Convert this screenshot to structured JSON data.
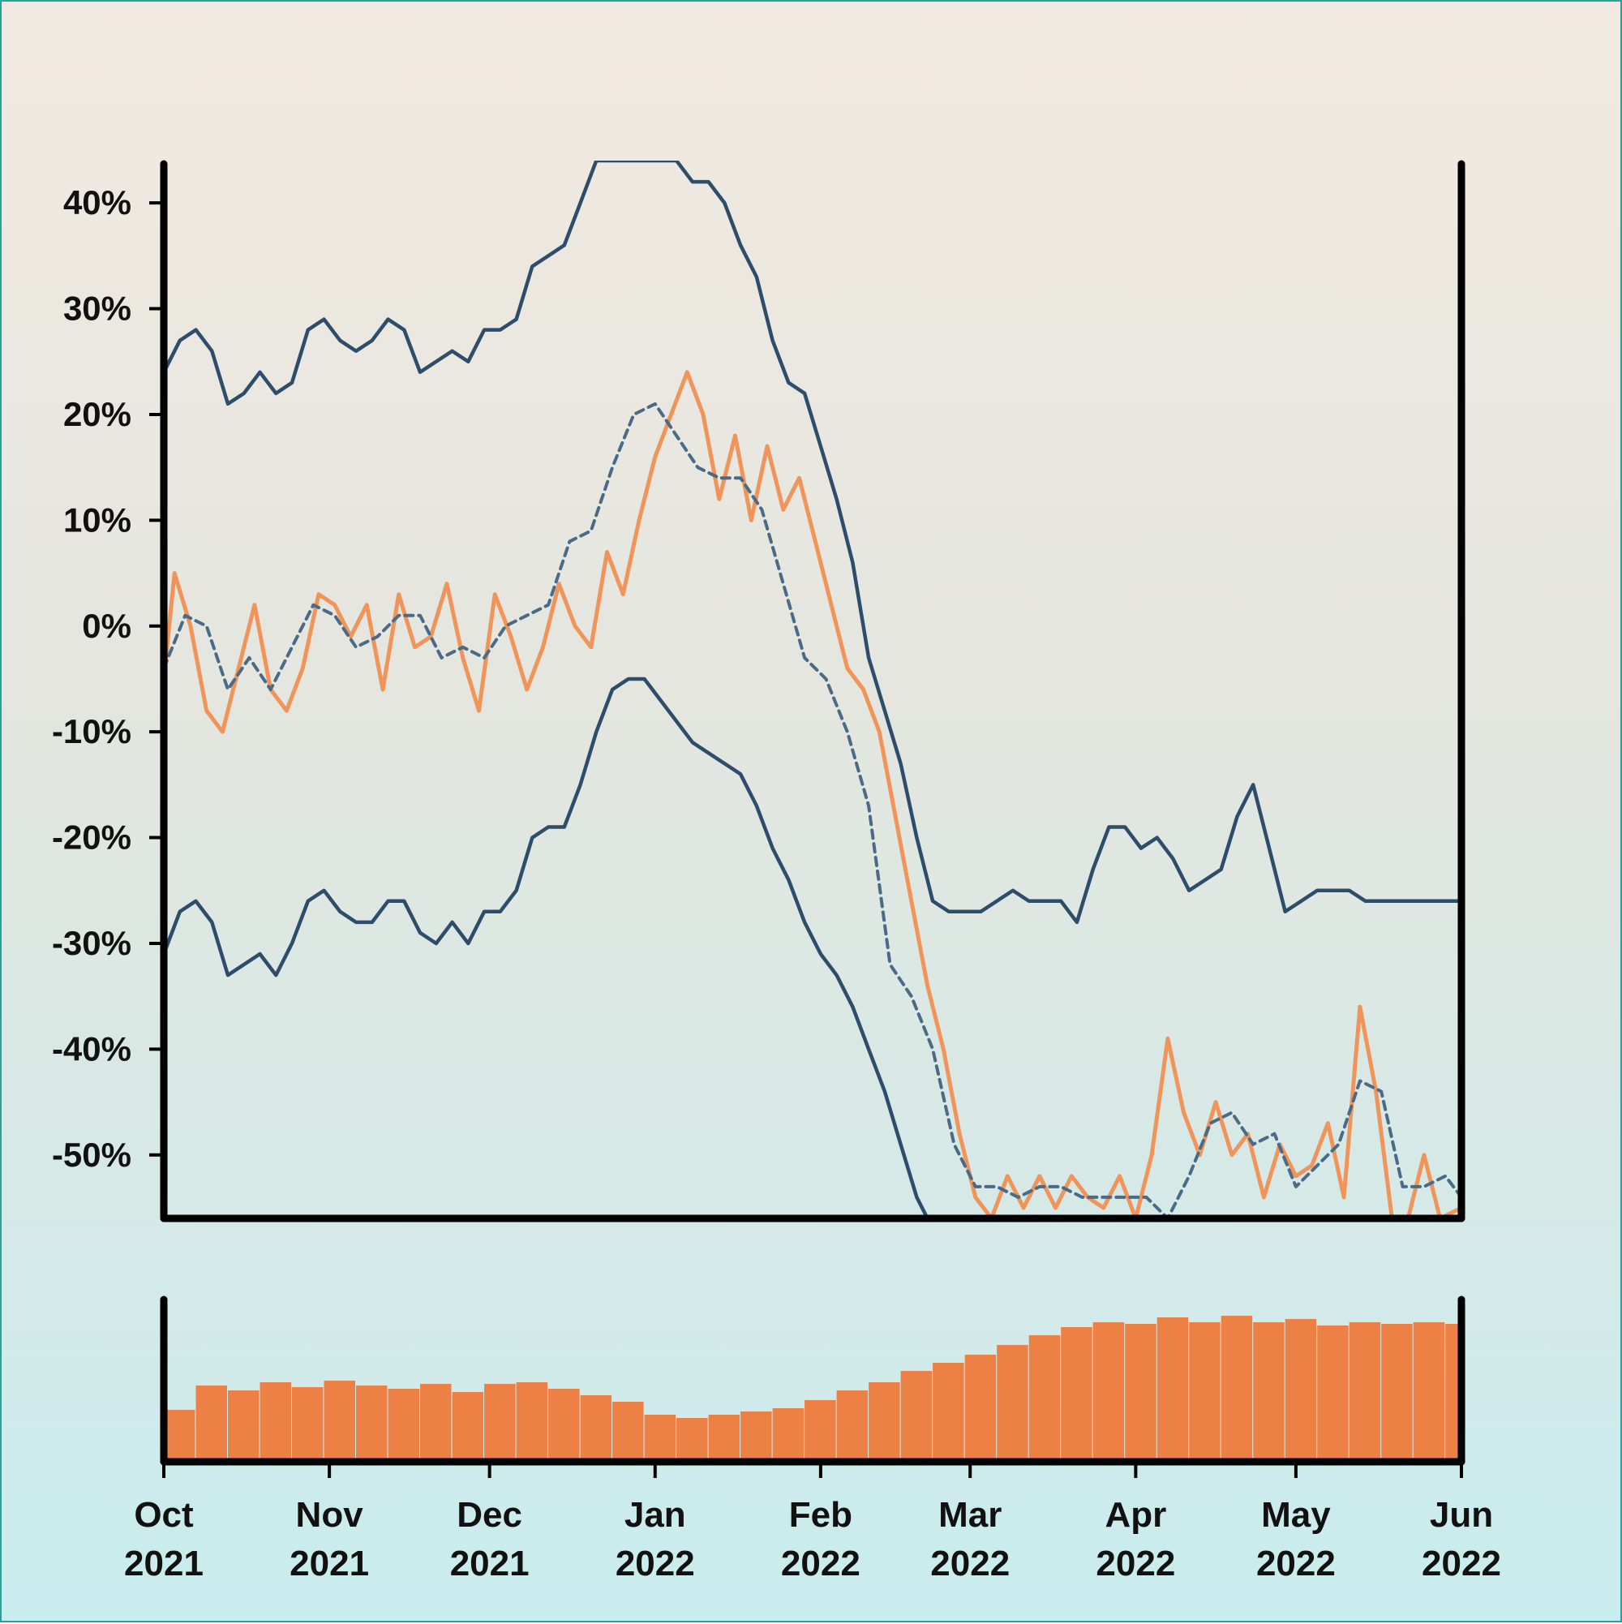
{
  "chart_data": {
    "type": "line",
    "title": "",
    "xlabel": "",
    "ylabel": "",
    "date_range": [
      "2021-10-01",
      "2022-06-01"
    ],
    "ylim": [
      -56,
      44
    ],
    "yticks": [
      40,
      30,
      20,
      10,
      0,
      -10,
      -20,
      -30,
      -40,
      -50
    ],
    "ytick_labels": [
      "40%",
      "30%",
      "20%",
      "10%",
      "0%",
      "-10%",
      "-20%",
      "-30%",
      "-40%",
      "-50%"
    ],
    "xticks": [
      "2021-10-01",
      "2021-11-01",
      "2021-12-01",
      "2022-01-01",
      "2022-02-01",
      "2022-03-01",
      "2022-04-01",
      "2022-05-01",
      "2022-06-01"
    ],
    "xtick_labels": [
      {
        "month": "Oct",
        "year": "2021"
      },
      {
        "month": "Nov",
        "year": "2021"
      },
      {
        "month": "Dec",
        "year": "2021"
      },
      {
        "month": "Jan",
        "year": "2022"
      },
      {
        "month": "Feb",
        "year": "2022"
      },
      {
        "month": "Mar",
        "year": "2022"
      },
      {
        "month": "Apr",
        "year": "2022"
      },
      {
        "month": "May",
        "year": "2022"
      },
      {
        "month": "Jun",
        "year": "2022"
      }
    ],
    "colors": {
      "price": "#f0945a",
      "band": "#2e4d6b",
      "average": "#4a6a86",
      "volume": "#ec8045"
    },
    "series": [
      {
        "role": "price",
        "style": "solid-orange",
        "x": [
          "2021-10-01",
          "2021-10-03",
          "2021-10-06",
          "2021-10-09",
          "2021-10-12",
          "2021-10-15",
          "2021-10-18",
          "2021-10-21",
          "2021-10-24",
          "2021-10-27",
          "2021-10-30",
          "2021-11-02",
          "2021-11-05",
          "2021-11-08",
          "2021-11-11",
          "2021-11-14",
          "2021-11-17",
          "2021-11-20",
          "2021-11-23",
          "2021-11-26",
          "2021-11-29",
          "2021-12-02",
          "2021-12-05",
          "2021-12-08",
          "2021-12-11",
          "2021-12-14",
          "2021-12-17",
          "2021-12-20",
          "2021-12-23",
          "2021-12-26",
          "2021-12-29",
          "2022-01-01",
          "2022-01-04",
          "2022-01-07",
          "2022-01-10",
          "2022-01-13",
          "2022-01-16",
          "2022-01-19",
          "2022-01-22",
          "2022-01-25",
          "2022-01-28",
          "2022-01-31",
          "2022-02-03",
          "2022-02-06",
          "2022-02-09",
          "2022-02-12",
          "2022-02-15",
          "2022-02-18",
          "2022-02-21",
          "2022-02-24",
          "2022-02-27",
          "2022-03-02",
          "2022-03-05",
          "2022-03-08",
          "2022-03-11",
          "2022-03-14",
          "2022-03-17",
          "2022-03-20",
          "2022-03-23",
          "2022-03-26",
          "2022-03-29",
          "2022-04-01",
          "2022-04-04",
          "2022-04-07",
          "2022-04-10",
          "2022-04-13",
          "2022-04-16",
          "2022-04-19",
          "2022-04-22",
          "2022-04-25",
          "2022-04-28",
          "2022-05-01",
          "2022-05-04",
          "2022-05-07",
          "2022-05-10",
          "2022-05-13",
          "2022-05-16",
          "2022-05-19",
          "2022-05-22",
          "2022-05-25",
          "2022-05-28",
          "2022-06-01"
        ],
        "y": [
          -5,
          5,
          0,
          -8,
          -10,
          -4,
          2,
          -6,
          -8,
          -4,
          3,
          2,
          -1,
          2,
          -6,
          3,
          -2,
          -1,
          4,
          -3,
          -8,
          3,
          -1,
          -6,
          -2,
          4,
          0,
          -2,
          7,
          3,
          10,
          16,
          20,
          24,
          20,
          12,
          18,
          10,
          17,
          11,
          14,
          8,
          2,
          -4,
          -6,
          -10,
          -18,
          -26,
          -34,
          -40,
          -48,
          -54,
          -56,
          -52,
          -55,
          -52,
          -55,
          -52,
          -54,
          -55,
          -52,
          -56,
          -50,
          -39,
          -46,
          -50,
          -45,
          -50,
          -48,
          -54,
          -49,
          -52,
          -51,
          -47,
          -54,
          -36,
          -44,
          -56,
          -56,
          -50,
          -56,
          -55
        ]
      },
      {
        "role": "moving-average",
        "style": "dashed-slate",
        "x": [
          "2021-10-01",
          "2021-10-05",
          "2021-10-09",
          "2021-10-13",
          "2021-10-17",
          "2021-10-21",
          "2021-10-25",
          "2021-10-29",
          "2021-11-02",
          "2021-11-06",
          "2021-11-10",
          "2021-11-14",
          "2021-11-18",
          "2021-11-22",
          "2021-11-26",
          "2021-11-30",
          "2021-12-04",
          "2021-12-08",
          "2021-12-12",
          "2021-12-16",
          "2021-12-20",
          "2021-12-24",
          "2021-12-28",
          "2022-01-01",
          "2022-01-05",
          "2022-01-09",
          "2022-01-13",
          "2022-01-17",
          "2022-01-21",
          "2022-01-25",
          "2022-01-29",
          "2022-02-02",
          "2022-02-06",
          "2022-02-10",
          "2022-02-14",
          "2022-02-18",
          "2022-02-22",
          "2022-02-26",
          "2022-03-02",
          "2022-03-06",
          "2022-03-10",
          "2022-03-14",
          "2022-03-18",
          "2022-03-22",
          "2022-03-26",
          "2022-03-30",
          "2022-04-03",
          "2022-04-07",
          "2022-04-11",
          "2022-04-15",
          "2022-04-19",
          "2022-04-23",
          "2022-04-27",
          "2022-05-01",
          "2022-05-05",
          "2022-05-09",
          "2022-05-13",
          "2022-05-17",
          "2022-05-21",
          "2022-05-25",
          "2022-05-29",
          "2022-06-01"
        ],
        "y": [
          -4,
          1,
          0,
          -6,
          -3,
          -6,
          -2,
          2,
          1,
          -2,
          -1,
          1,
          1,
          -3,
          -2,
          -3,
          0,
          1,
          2,
          8,
          9,
          15,
          20,
          21,
          18,
          15,
          14,
          14,
          11,
          4,
          -3,
          -5,
          -10,
          -17,
          -32,
          -35,
          -40,
          -49,
          -53,
          -53,
          -54,
          -53,
          -53,
          -54,
          -54,
          -54,
          -54,
          -56,
          -52,
          -47,
          -46,
          -49,
          -48,
          -53,
          -51,
          -49,
          -43,
          -44,
          -53,
          -53,
          -52,
          -54
        ]
      },
      {
        "role": "upper-band",
        "style": "solid-navy",
        "x": [
          "2021-10-01",
          "2021-10-04",
          "2021-10-07",
          "2021-10-10",
          "2021-10-13",
          "2021-10-16",
          "2021-10-19",
          "2021-10-22",
          "2021-10-25",
          "2021-10-28",
          "2021-10-31",
          "2021-11-03",
          "2021-11-06",
          "2021-11-09",
          "2021-11-12",
          "2021-11-15",
          "2021-11-18",
          "2021-11-21",
          "2021-11-24",
          "2021-11-27",
          "2021-11-30",
          "2021-12-03",
          "2021-12-06",
          "2021-12-09",
          "2021-12-12",
          "2021-12-15",
          "2021-12-18",
          "2021-12-21",
          "2021-12-24",
          "2021-12-27",
          "2021-12-30",
          "2022-01-02",
          "2022-01-05",
          "2022-01-08",
          "2022-01-11",
          "2022-01-14",
          "2022-01-17",
          "2022-01-20",
          "2022-01-23",
          "2022-01-26",
          "2022-01-29",
          "2022-02-01",
          "2022-02-04",
          "2022-02-07",
          "2022-02-10",
          "2022-02-13",
          "2022-02-16",
          "2022-02-19",
          "2022-02-22",
          "2022-02-25",
          "2022-02-28",
          "2022-03-03",
          "2022-03-06",
          "2022-03-09",
          "2022-03-12",
          "2022-03-15",
          "2022-03-18",
          "2022-03-21",
          "2022-03-24",
          "2022-03-27",
          "2022-03-30",
          "2022-04-02",
          "2022-04-05",
          "2022-04-08",
          "2022-04-11",
          "2022-04-14",
          "2022-04-17",
          "2022-04-20",
          "2022-04-23",
          "2022-04-26",
          "2022-04-29",
          "2022-05-02",
          "2022-05-05",
          "2022-05-08",
          "2022-05-11",
          "2022-05-14",
          "2022-05-17",
          "2022-05-20",
          "2022-05-23",
          "2022-05-26",
          "2022-05-29",
          "2022-06-01"
        ],
        "y": [
          24,
          27,
          28,
          26,
          21,
          22,
          24,
          22,
          23,
          28,
          29,
          27,
          26,
          27,
          29,
          28,
          24,
          25,
          26,
          25,
          28,
          28,
          29,
          34,
          35,
          36,
          40,
          44,
          44,
          44,
          44,
          44,
          44,
          42,
          42,
          40,
          36,
          33,
          27,
          23,
          22,
          17,
          12,
          6,
          -3,
          -8,
          -13,
          -20,
          -26,
          -27,
          -27,
          -27,
          -26,
          -25,
          -26,
          -26,
          -26,
          -28,
          -23,
          -19,
          -19,
          -21,
          -20,
          -22,
          -25,
          -24,
          -23,
          -18,
          -15,
          -21,
          -27,
          -26,
          -25,
          -25,
          -25,
          -26,
          -26,
          -26,
          -26,
          -26,
          -26,
          -26
        ]
      },
      {
        "role": "lower-band",
        "style": "solid-navy",
        "x": [
          "2021-10-01",
          "2021-10-04",
          "2021-10-07",
          "2021-10-10",
          "2021-10-13",
          "2021-10-16",
          "2021-10-19",
          "2021-10-22",
          "2021-10-25",
          "2021-10-28",
          "2021-10-31",
          "2021-11-03",
          "2021-11-06",
          "2021-11-09",
          "2021-11-12",
          "2021-11-15",
          "2021-11-18",
          "2021-11-21",
          "2021-11-24",
          "2021-11-27",
          "2021-11-30",
          "2021-12-03",
          "2021-12-06",
          "2021-12-09",
          "2021-12-12",
          "2021-12-15",
          "2021-12-18",
          "2021-12-21",
          "2021-12-24",
          "2021-12-27",
          "2021-12-30",
          "2022-01-02",
          "2022-01-05",
          "2022-01-08",
          "2022-01-11",
          "2022-01-14",
          "2022-01-17",
          "2022-01-20",
          "2022-01-23",
          "2022-01-26",
          "2022-01-29",
          "2022-02-01",
          "2022-02-04",
          "2022-02-07",
          "2022-02-10",
          "2022-02-13",
          "2022-02-16",
          "2022-02-19",
          "2022-02-21"
        ],
        "y": [
          -31,
          -27,
          -26,
          -28,
          -33,
          -32,
          -31,
          -33,
          -30,
          -26,
          -25,
          -27,
          -28,
          -28,
          -26,
          -26,
          -29,
          -30,
          -28,
          -30,
          -27,
          -27,
          -25,
          -20,
          -19,
          -19,
          -15,
          -10,
          -6,
          -5,
          -5,
          -7,
          -9,
          -11,
          -12,
          -13,
          -14,
          -17,
          -21,
          -24,
          -28,
          -31,
          -33,
          -36,
          -40,
          -44,
          -49,
          -54,
          -56
        ]
      }
    ],
    "volume": {
      "note": "relative daily volume, 0-1 of panel height",
      "x": [
        "2021-10-01",
        "2021-10-07",
        "2021-10-13",
        "2021-10-19",
        "2021-10-25",
        "2021-10-31",
        "2021-11-06",
        "2021-11-12",
        "2021-11-18",
        "2021-11-24",
        "2021-11-30",
        "2021-12-06",
        "2021-12-12",
        "2021-12-18",
        "2021-12-24",
        "2021-12-30",
        "2022-01-05",
        "2022-01-11",
        "2022-01-17",
        "2022-01-23",
        "2022-01-29",
        "2022-02-04",
        "2022-02-10",
        "2022-02-16",
        "2022-02-22",
        "2022-02-28",
        "2022-03-06",
        "2022-03-12",
        "2022-03-18",
        "2022-03-24",
        "2022-03-30",
        "2022-04-05",
        "2022-04-11",
        "2022-04-17",
        "2022-04-23",
        "2022-04-29",
        "2022-05-05",
        "2022-05-11",
        "2022-05-17",
        "2022-05-23",
        "2022-05-29",
        "2022-06-01"
      ],
      "values": [
        0.32,
        0.47,
        0.44,
        0.49,
        0.46,
        0.5,
        0.47,
        0.45,
        0.48,
        0.43,
        0.48,
        0.49,
        0.45,
        0.41,
        0.37,
        0.29,
        0.27,
        0.29,
        0.31,
        0.33,
        0.38,
        0.44,
        0.49,
        0.56,
        0.61,
        0.66,
        0.72,
        0.78,
        0.83,
        0.86,
        0.85,
        0.89,
        0.86,
        0.9,
        0.86,
        0.88,
        0.84,
        0.86,
        0.85,
        0.86,
        0.85,
        0.96
      ]
    }
  }
}
